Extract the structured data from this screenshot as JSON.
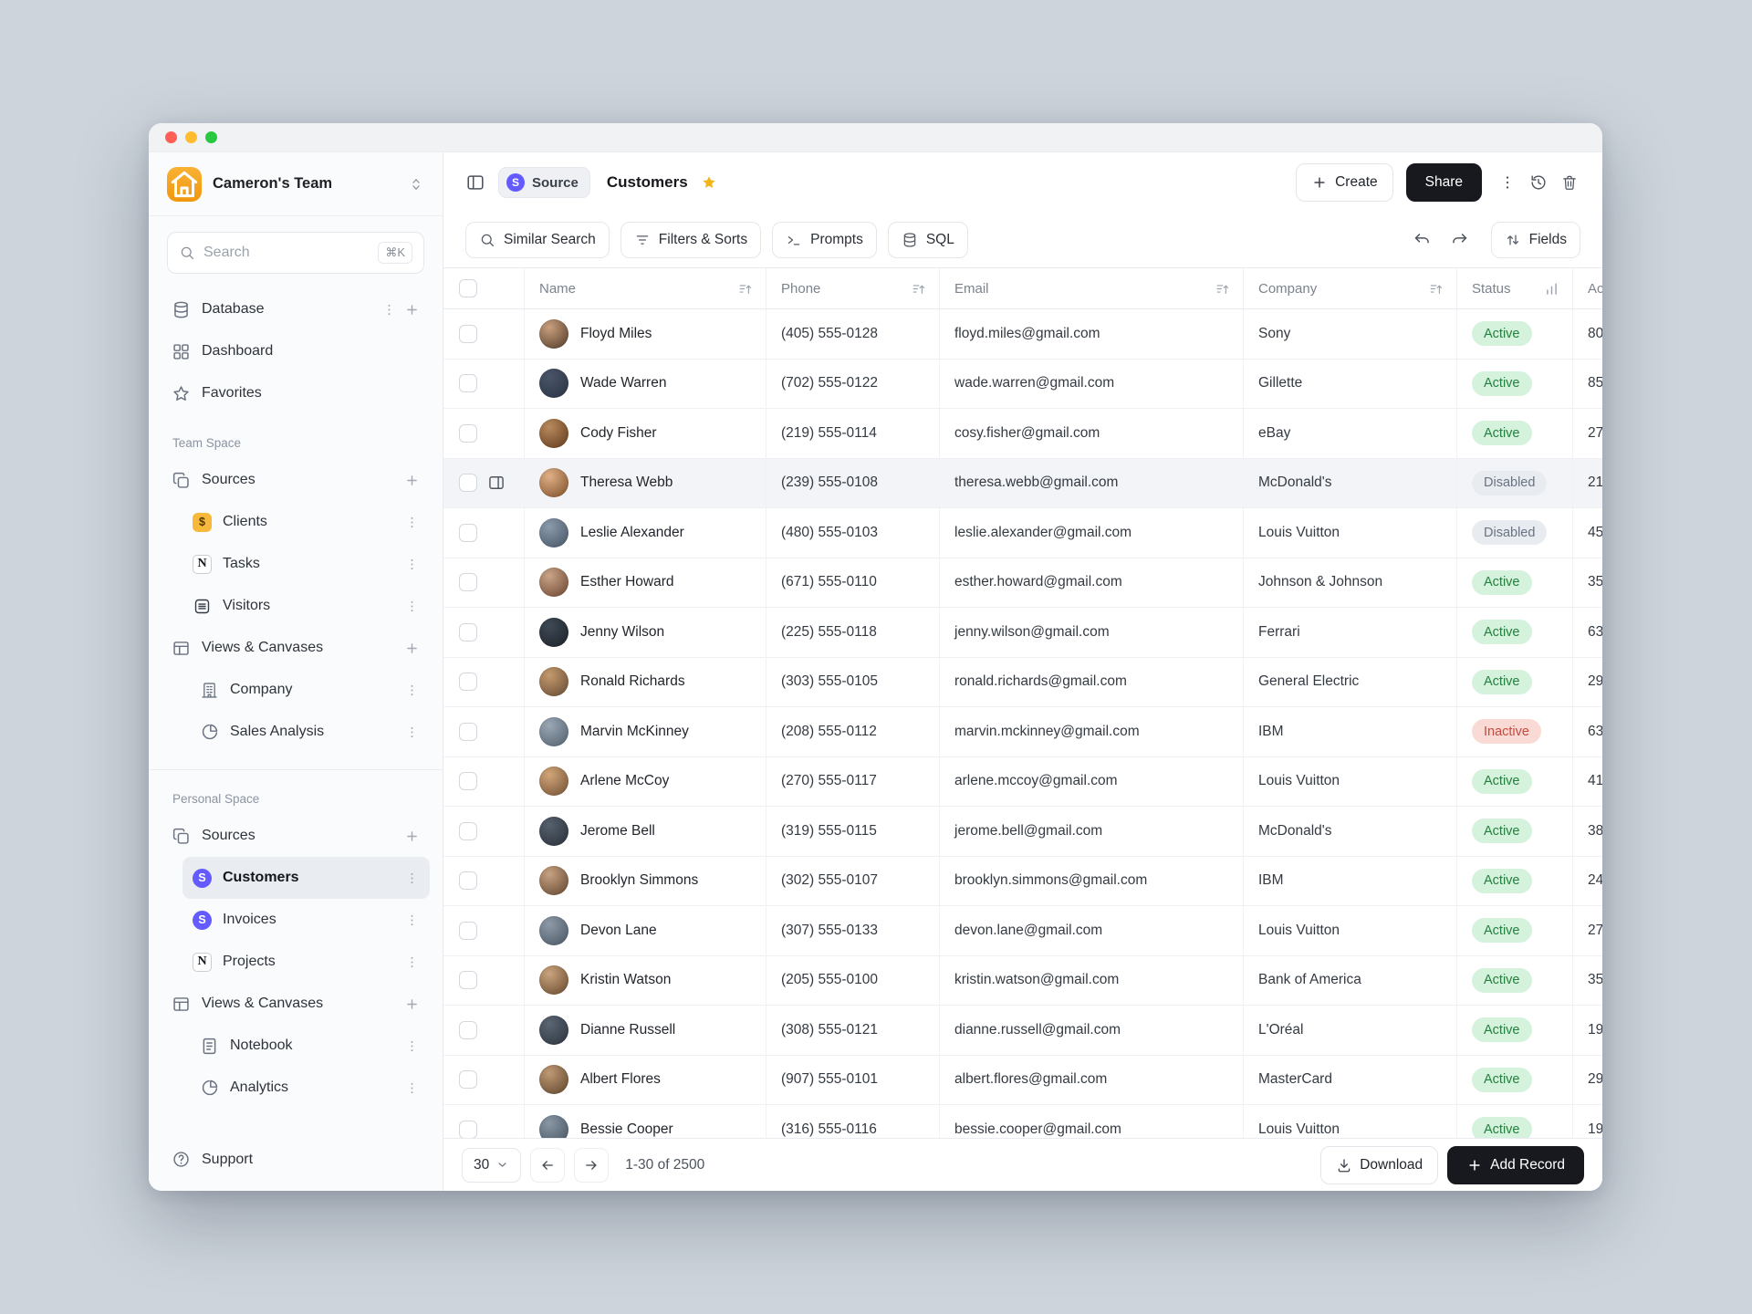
{
  "colors": {
    "accent_purple": "#635bff",
    "brand_amber": "#f6a723",
    "star_gold": "#f2b418",
    "active_bg": "#d4f2dc",
    "active_text": "#25803f",
    "disabled_bg": "#e8ebf0",
    "disabled_text": "#6a7382",
    "inactive_bg": "#fadad5",
    "inactive_text": "#c74a3d",
    "dark_button": "#17191e"
  },
  "sidebar": {
    "team_name": "Cameron's Team",
    "search": {
      "placeholder": "Search",
      "shortcut": "⌘K"
    },
    "groups": [
      {
        "title": "",
        "items": [
          {
            "label": "Database",
            "icon": "database",
            "trail": [
              "kebab",
              "plus"
            ]
          },
          {
            "label": "Dashboard",
            "icon": "dashboard",
            "trail": []
          },
          {
            "label": "Favorites",
            "icon": "star",
            "trail": []
          }
        ]
      },
      {
        "title": "Team Space",
        "items": [
          {
            "label": "Sources",
            "icon": "layers",
            "trail": [
              "plus"
            ]
          },
          {
            "label": "Clients",
            "icon": "app-clients",
            "indent": 1,
            "trail": [
              "kebab"
            ]
          },
          {
            "label": "Tasks",
            "icon": "app-notion",
            "indent": 1,
            "trail": [
              "kebab"
            ]
          },
          {
            "label": "Visitors",
            "icon": "app-visitors",
            "indent": 1,
            "trail": [
              "kebab"
            ]
          },
          {
            "label": "Views & Canvases",
            "icon": "table",
            "trail": [
              "plus"
            ]
          },
          {
            "label": "Company",
            "icon": "building",
            "indent": 2,
            "trail": [
              "kebab"
            ]
          },
          {
            "label": "Sales Analysis",
            "icon": "pie",
            "indent": 2,
            "trail": [
              "kebab"
            ]
          }
        ]
      },
      {
        "title": "Personal Space",
        "divider": true,
        "items": [
          {
            "label": "Sources",
            "icon": "layers",
            "trail": [
              "plus"
            ]
          },
          {
            "label": "Customers",
            "icon": "app-stripe",
            "indent": 1,
            "selected": true,
            "trail": [
              "kebab"
            ]
          },
          {
            "label": "Invoices",
            "icon": "app-stripe",
            "indent": 1,
            "trail": [
              "kebab"
            ]
          },
          {
            "label": "Projects",
            "icon": "app-notion",
            "indent": 1,
            "trail": [
              "kebab"
            ]
          },
          {
            "label": "Views & Canvases",
            "icon": "table",
            "trail": [
              "plus"
            ]
          },
          {
            "label": "Notebook",
            "icon": "doc",
            "indent": 2,
            "trail": [
              "kebab"
            ]
          },
          {
            "label": "Analytics",
            "icon": "pie",
            "indent": 2,
            "trail": [
              "kebab"
            ]
          }
        ]
      }
    ],
    "support_label": "Support"
  },
  "header": {
    "source_badge": "Source",
    "title": "Customers",
    "create_label": "Create",
    "share_label": "Share"
  },
  "toolbar": {
    "buttons": [
      {
        "label": "Similar Search",
        "icon": "search"
      },
      {
        "label": "Filters & Sorts",
        "icon": "filter"
      },
      {
        "label": "Prompts",
        "icon": "terminal"
      },
      {
        "label": "SQL",
        "icon": "database"
      }
    ],
    "fields_label": "Fields"
  },
  "table": {
    "columns": [
      {
        "label": "Name",
        "icon": "sort"
      },
      {
        "label": "Phone",
        "icon": "sort"
      },
      {
        "label": "Email",
        "icon": "sort"
      },
      {
        "label": "Company",
        "icon": "sort"
      },
      {
        "label": "Status",
        "icon": "chart"
      },
      {
        "label": "Ac",
        "icon": ""
      }
    ],
    "rows": [
      {
        "name": "Floyd Miles",
        "phone": "(405) 555-0128",
        "email": "floyd.miles@gmail.com",
        "company": "Sony",
        "status": "Active",
        "extra": "80"
      },
      {
        "name": "Wade Warren",
        "phone": "(702) 555-0122",
        "email": "wade.warren@gmail.com",
        "company": "Gillette",
        "status": "Active",
        "extra": "85"
      },
      {
        "name": "Cody Fisher",
        "phone": "(219) 555-0114",
        "email": "cosy.fisher@gmail.com",
        "company": "eBay",
        "status": "Active",
        "extra": "27"
      },
      {
        "name": "Theresa Webb",
        "phone": "(239) 555-0108",
        "email": "theresa.webb@gmail.com",
        "company": "McDonald's",
        "status": "Disabled",
        "extra": "21",
        "highlighted": true
      },
      {
        "name": "Leslie Alexander",
        "phone": "(480) 555-0103",
        "email": "leslie.alexander@gmail.com",
        "company": "Louis Vuitton",
        "status": "Disabled",
        "extra": "45"
      },
      {
        "name": "Esther Howard",
        "phone": "(671) 555-0110",
        "email": "esther.howard@gmail.com",
        "company": "Johnson & Johnson",
        "status": "Active",
        "extra": "35"
      },
      {
        "name": "Jenny Wilson",
        "phone": "(225) 555-0118",
        "email": "jenny.wilson@gmail.com",
        "company": "Ferrari",
        "status": "Active",
        "extra": "63"
      },
      {
        "name": "Ronald Richards",
        "phone": "(303) 555-0105",
        "email": "ronald.richards@gmail.com",
        "company": "General Electric",
        "status": "Active",
        "extra": "29"
      },
      {
        "name": "Marvin McKinney",
        "phone": "(208) 555-0112",
        "email": "marvin.mckinney@gmail.com",
        "company": "IBM",
        "status": "Inactive",
        "extra": "63"
      },
      {
        "name": "Arlene McCoy",
        "phone": "(270) 555-0117",
        "email": "arlene.mccoy@gmail.com",
        "company": "Louis Vuitton",
        "status": "Active",
        "extra": "41"
      },
      {
        "name": "Jerome Bell",
        "phone": "(319) 555-0115",
        "email": "jerome.bell@gmail.com",
        "company": "McDonald's",
        "status": "Active",
        "extra": "38"
      },
      {
        "name": "Brooklyn Simmons",
        "phone": "(302) 555-0107",
        "email": "brooklyn.simmons@gmail.com",
        "company": "IBM",
        "status": "Active",
        "extra": "24"
      },
      {
        "name": "Devon Lane",
        "phone": "(307) 555-0133",
        "email": "devon.lane@gmail.com",
        "company": "Louis Vuitton",
        "status": "Active",
        "extra": "27"
      },
      {
        "name": "Kristin Watson",
        "phone": "(205) 555-0100",
        "email": "kristin.watson@gmail.com",
        "company": "Bank of America",
        "status": "Active",
        "extra": "35"
      },
      {
        "name": "Dianne Russell",
        "phone": "(308) 555-0121",
        "email": "dianne.russell@gmail.com",
        "company": "L'Oréal",
        "status": "Active",
        "extra": "19"
      },
      {
        "name": "Albert Flores",
        "phone": "(907) 555-0101",
        "email": "albert.flores@gmail.com",
        "company": "MasterCard",
        "status": "Active",
        "extra": "29"
      },
      {
        "name": "Bessie Cooper",
        "phone": "(316) 555-0116",
        "email": "bessie.cooper@gmail.com",
        "company": "Louis Vuitton",
        "status": "Active",
        "extra": "19"
      }
    ]
  },
  "footer": {
    "page_size": "30",
    "range": "1-30 of 2500",
    "download_label": "Download",
    "add_record_label": "Add Record"
  }
}
